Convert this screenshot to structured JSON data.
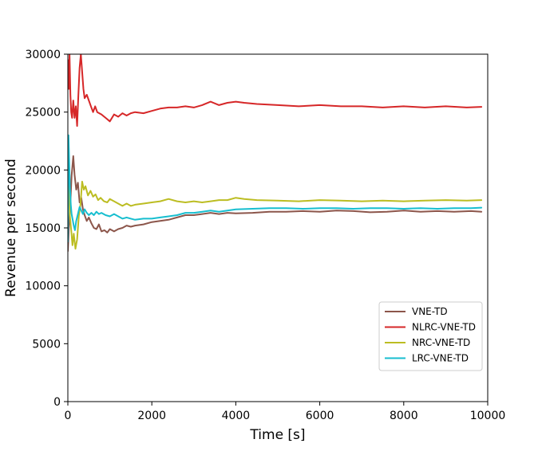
{
  "chart_data": {
    "type": "line",
    "title": "",
    "xlabel": "Time [s]",
    "ylabel": "Revenue per second",
    "xlim": [
      0,
      10000
    ],
    "ylim": [
      0,
      30000
    ],
    "xticks": [
      "0",
      "2000",
      "4000",
      "6000",
      "8000",
      "10000"
    ],
    "yticks": [
      "0",
      "5000",
      "10000",
      "15000",
      "20000",
      "25000",
      "30000"
    ],
    "grid": false,
    "legend_position": "lower-right",
    "series": [
      {
        "name": "VNE-TD",
        "color": "#8c564b",
        "x": [
          0,
          30,
          60,
          90,
          130,
          160,
          200,
          240,
          280,
          320,
          360,
          400,
          450,
          500,
          560,
          620,
          680,
          740,
          800,
          870,
          940,
          1000,
          1100,
          1200,
          1300,
          1400,
          1500,
          1600,
          1800,
          2000,
          2200,
          2400,
          2600,
          2800,
          3000,
          3200,
          3400,
          3600,
          3800,
          4000,
          4400,
          4800,
          5200,
          5600,
          6000,
          6400,
          6800,
          7200,
          7600,
          8000,
          8400,
          8800,
          9200,
          9600,
          9850
        ],
        "y": [
          13000,
          15500,
          17200,
          19500,
          21200,
          19600,
          18300,
          18900,
          17200,
          17600,
          16600,
          16100,
          15600,
          15900,
          15400,
          15000,
          14900,
          15300,
          14700,
          14800,
          14600,
          14900,
          14700,
          14900,
          15000,
          15200,
          15100,
          15200,
          15300,
          15500,
          15600,
          15700,
          15900,
          16100,
          16100,
          16200,
          16300,
          16200,
          16300,
          16250,
          16300,
          16400,
          16400,
          16450,
          16400,
          16500,
          16450,
          16350,
          16400,
          16500,
          16400,
          16450,
          16400,
          16450,
          16400
        ]
      },
      {
        "name": "NLRC-VNE-TD",
        "color": "#d62728",
        "x": [
          0,
          20,
          40,
          60,
          80,
          100,
          130,
          160,
          190,
          220,
          250,
          280,
          310,
          340,
          370,
          400,
          450,
          500,
          550,
          600,
          650,
          700,
          800,
          900,
          1000,
          1100,
          1200,
          1300,
          1400,
          1500,
          1600,
          1800,
          2000,
          2200,
          2400,
          2600,
          2800,
          3000,
          3200,
          3400,
          3600,
          3800,
          4000,
          4200,
          4500,
          5000,
          5500,
          6000,
          6500,
          7000,
          7500,
          8000,
          8500,
          9000,
          9500,
          9850
        ],
        "y": [
          29500,
          27000,
          30000,
          26500,
          25000,
          24500,
          26000,
          24500,
          25500,
          23800,
          26500,
          28800,
          30000,
          28500,
          27000,
          26200,
          26500,
          26000,
          25500,
          25000,
          25500,
          25000,
          24800,
          24500,
          24200,
          24800,
          24600,
          24900,
          24700,
          24900,
          25000,
          24900,
          25100,
          25300,
          25400,
          25400,
          25500,
          25400,
          25600,
          25900,
          25600,
          25800,
          25900,
          25800,
          25700,
          25600,
          25500,
          25600,
          25500,
          25500,
          25400,
          25500,
          25400,
          25500,
          25400,
          25450
        ]
      },
      {
        "name": "NRC-VNE-TD",
        "color": "#bcbd22",
        "x": [
          0,
          20,
          50,
          80,
          110,
          140,
          180,
          220,
          260,
          300,
          340,
          380,
          420,
          480,
          540,
          600,
          660,
          720,
          780,
          860,
          940,
          1000,
          1100,
          1200,
          1300,
          1400,
          1500,
          1600,
          1800,
          2000,
          2200,
          2400,
          2600,
          2800,
          3000,
          3200,
          3400,
          3600,
          3800,
          4000,
          4200,
          4500,
          5000,
          5500,
          6000,
          6500,
          7000,
          7500,
          8000,
          8500,
          9000,
          9500,
          9850
        ],
        "y": [
          21500,
          18500,
          16000,
          14800,
          13500,
          14500,
          13200,
          14000,
          16000,
          17000,
          19000,
          18300,
          18600,
          17800,
          18200,
          17700,
          17900,
          17400,
          17600,
          17300,
          17200,
          17500,
          17300,
          17100,
          16900,
          17100,
          16900,
          17000,
          17100,
          17200,
          17300,
          17500,
          17300,
          17200,
          17300,
          17200,
          17300,
          17400,
          17400,
          17600,
          17500,
          17400,
          17350,
          17300,
          17400,
          17350,
          17300,
          17350,
          17300,
          17350,
          17400,
          17350,
          17400
        ]
      },
      {
        "name": "LRC-VNE-TD",
        "color": "#17becf",
        "x": [
          0,
          15,
          30,
          50,
          70,
          90,
          110,
          140,
          170,
          200,
          240,
          280,
          320,
          360,
          400,
          450,
          500,
          560,
          620,
          680,
          740,
          800,
          900,
          1000,
          1100,
          1200,
          1300,
          1400,
          1500,
          1600,
          1800,
          2000,
          2200,
          2400,
          2600,
          2800,
          3000,
          3200,
          3400,
          3600,
          3800,
          4000,
          4400,
          4800,
          5200,
          5600,
          6000,
          6400,
          6800,
          7200,
          7600,
          8000,
          8400,
          8800,
          9200,
          9600,
          9850
        ],
        "y": [
          13800,
          23000,
          21000,
          18500,
          17000,
          16200,
          15800,
          15200,
          14800,
          15600,
          16200,
          16800,
          16500,
          16200,
          16600,
          16300,
          16100,
          16300,
          16100,
          16400,
          16200,
          16300,
          16100,
          16000,
          16200,
          16000,
          15800,
          15900,
          15800,
          15700,
          15800,
          15800,
          15900,
          16000,
          16100,
          16300,
          16300,
          16400,
          16500,
          16400,
          16500,
          16600,
          16650,
          16700,
          16700,
          16650,
          16700,
          16700,
          16650,
          16700,
          16700,
          16650,
          16700,
          16650,
          16700,
          16700,
          16750
        ]
      }
    ]
  }
}
